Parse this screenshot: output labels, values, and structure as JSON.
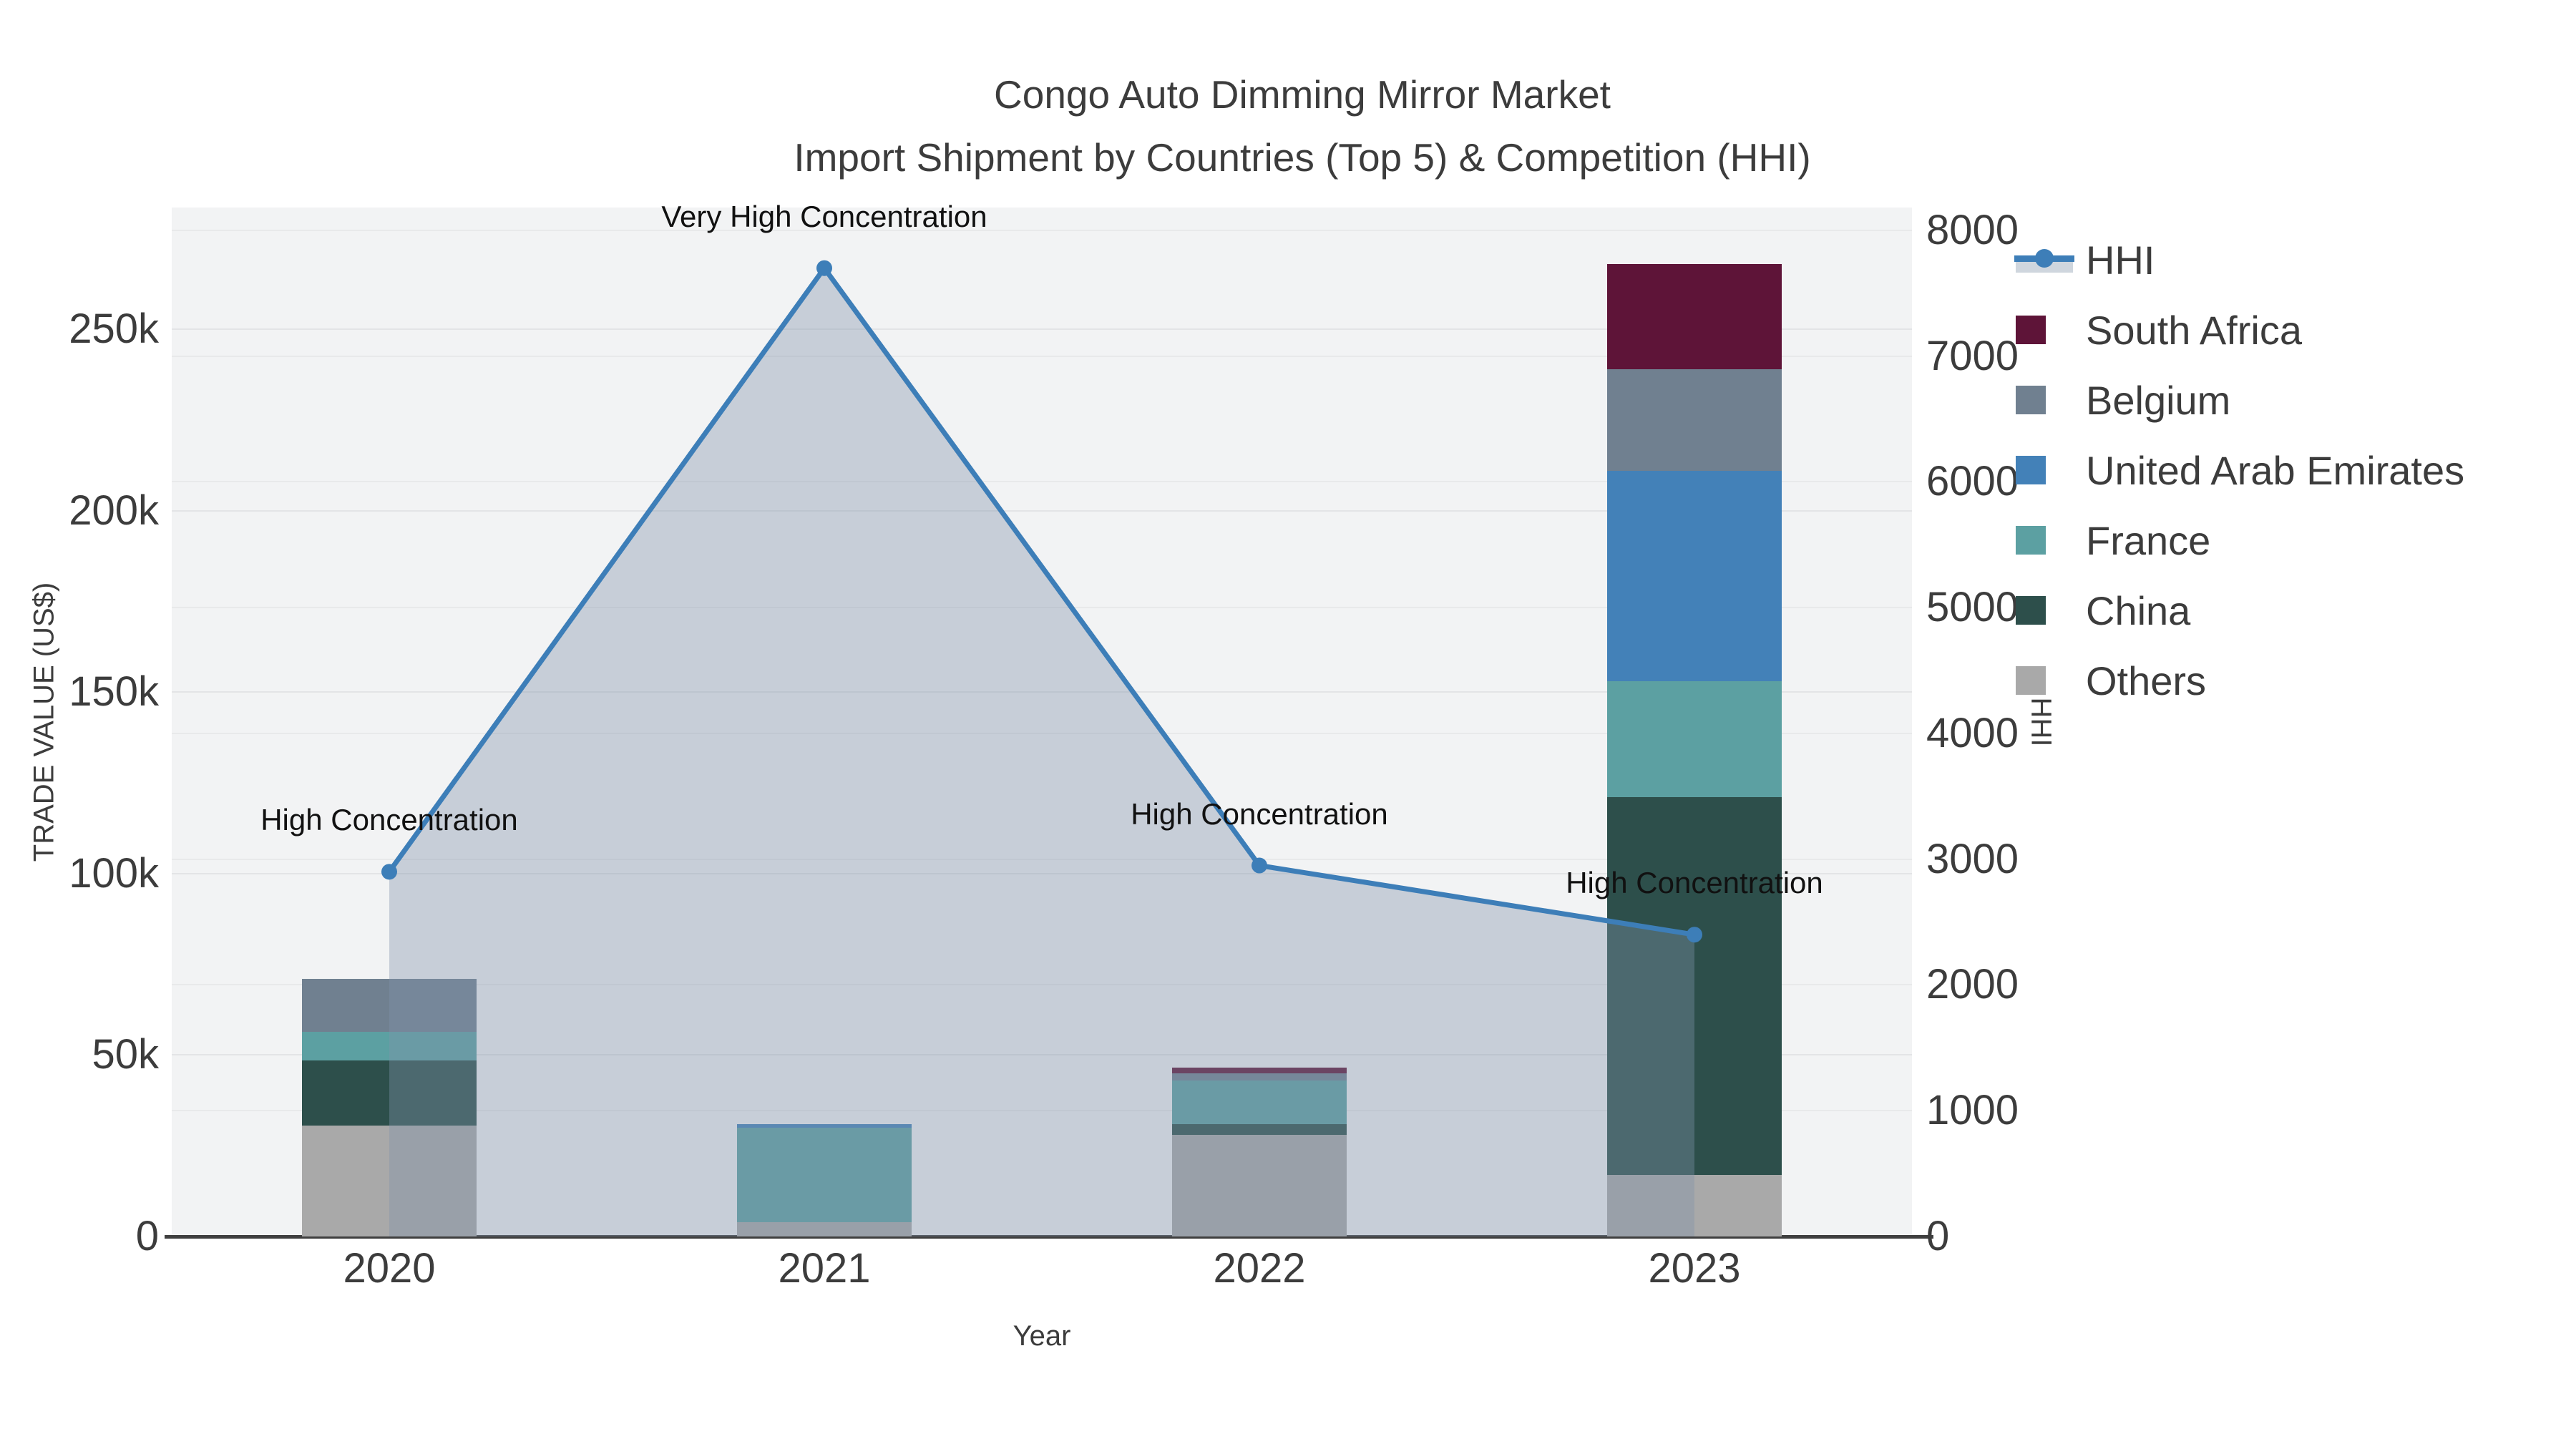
{
  "chart_data": {
    "type": "combo: stacked-bar + line-area (dual axis)",
    "title_line1": "Congo Auto Dimming Mirror Market",
    "title_line2": "Import Shipment by Countries (Top 5) & Competition (HHI)",
    "xlabel": "Year",
    "ylabel_left": "TRADE VALUE (US$)",
    "ylabel_right": "HHI",
    "categories": [
      "2020",
      "2021",
      "2022",
      "2023"
    ],
    "bar_series": [
      {
        "name": "Others",
        "color": "#A9A9A9",
        "values": [
          30500,
          4000,
          28000,
          17000
        ]
      },
      {
        "name": "China",
        "color": "#2D4F4B",
        "values": [
          18000,
          0,
          3000,
          104000
        ]
      },
      {
        "name": "France",
        "color": "#5CA0A2",
        "values": [
          8000,
          26000,
          12000,
          32000
        ]
      },
      {
        "name": "United Arab Emirates",
        "color": "#4381B8",
        "values": [
          0,
          1000,
          0,
          58000
        ]
      },
      {
        "name": "Belgium",
        "color": "#708090",
        "values": [
          14500,
          0,
          2000,
          28000
        ]
      },
      {
        "name": "South Africa",
        "color": "#5E1438",
        "values": [
          0,
          0,
          1500,
          29000
        ]
      }
    ],
    "line_series": {
      "name": "HHI",
      "color": "#3D7EB8",
      "fill": "rgba(130,148,172,0.38)",
      "values": [
        2900,
        7700,
        2950,
        2400
      ]
    },
    "annotations": [
      "High Concentration",
      "Very High Concentration",
      "High Concentration",
      "High Concentration"
    ],
    "y_left": {
      "ticks": [
        "0",
        "50k",
        "100k",
        "150k",
        "200k",
        "250k"
      ],
      "tick_values": [
        0,
        50000,
        100000,
        150000,
        200000,
        250000
      ],
      "max": 283600,
      "grid": true
    },
    "y_right": {
      "ticks": [
        "0",
        "1000",
        "2000",
        "3000",
        "4000",
        "5000",
        "6000",
        "7000",
        "8000"
      ],
      "tick_values": [
        0,
        1000,
        2000,
        3000,
        4000,
        5000,
        6000,
        7000,
        8000
      ],
      "max": 8182,
      "grid": true
    },
    "legend": {
      "position": "top-right",
      "items": [
        {
          "label": "HHI",
          "type": "line",
          "color": "#3D7EB8"
        },
        {
          "label": "South Africa",
          "type": "square",
          "color": "#5E1438"
        },
        {
          "label": "Belgium",
          "type": "square",
          "color": "#708090"
        },
        {
          "label": "United Arab Emirates",
          "type": "square",
          "color": "#4381B8"
        },
        {
          "label": "France",
          "type": "square",
          "color": "#5CA0A2"
        },
        {
          "label": "China",
          "type": "square",
          "color": "#2D4F4B"
        },
        {
          "label": "Others",
          "type": "square",
          "color": "#A9A9A9"
        }
      ]
    }
  }
}
